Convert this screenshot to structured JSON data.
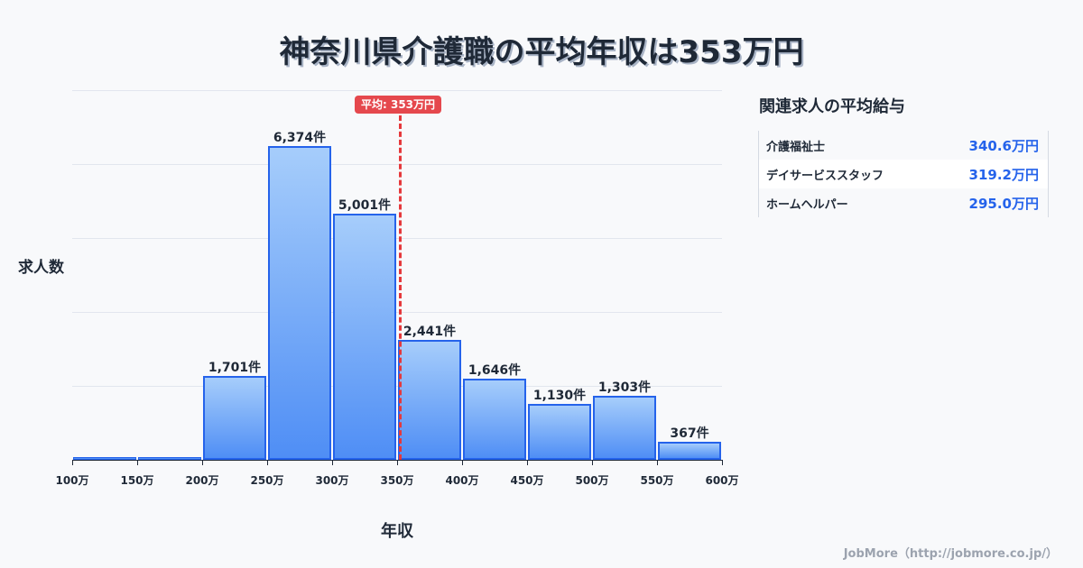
{
  "title": "神奈川県介護職の平均年収は353万円",
  "axis": {
    "ylabel": "求人数",
    "xlabel": "年収"
  },
  "mean_badge": "平均: 353万円",
  "side": {
    "title": "関連求人の平均給与",
    "rows": [
      {
        "name": "介護福祉士",
        "value": "340.6万円"
      },
      {
        "name": "デイサービススタッフ",
        "value": "319.2万円"
      },
      {
        "name": "ホームヘルパー",
        "value": "295.0万円"
      }
    ]
  },
  "footer": "JobMore（http://jobmore.co.jp/）",
  "colors": {
    "bar_border": "#2563eb",
    "bar_top": "#a6cdfb",
    "bar_bottom": "#4f8ef5",
    "mean_line": "#e5383b",
    "value_text": "#2563eb"
  },
  "chart_data": {
    "type": "bar",
    "title": "神奈川県介護職の平均年収は353万円",
    "xlabel": "年収",
    "ylabel": "求人数",
    "categories": [
      "100-150万",
      "150-200万",
      "200-250万",
      "250-300万",
      "300-350万",
      "350-400万",
      "400-450万",
      "450-500万",
      "500-550万",
      "550-600万"
    ],
    "values": [
      0,
      0,
      1701,
      6374,
      5001,
      2441,
      1646,
      1130,
      1303,
      367
    ],
    "value_labels": [
      "",
      "",
      "1,701件",
      "6,374件",
      "5,001件",
      "2,441件",
      "1,646件",
      "1,130件",
      "1,303件",
      "367件"
    ],
    "x_ticks": [
      "100万",
      "150万",
      "200万",
      "250万",
      "300万",
      "350万",
      "400万",
      "450万",
      "500万",
      "550万",
      "600万"
    ],
    "ylim": [
      0,
      7500
    ],
    "grid": true,
    "annotations": [
      {
        "type": "vline",
        "x": 353,
        "label": "平均: 353万円"
      }
    ]
  }
}
